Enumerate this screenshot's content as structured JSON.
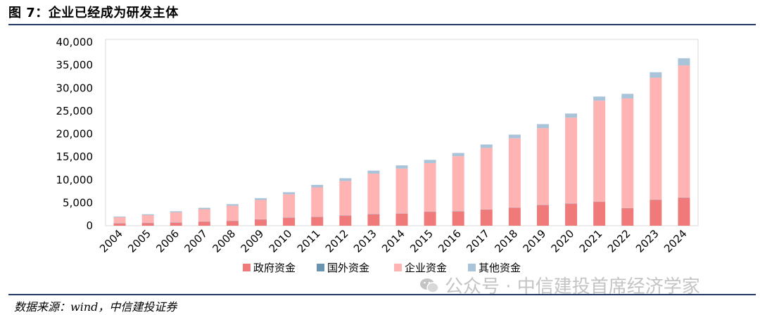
{
  "title": "图 7：企业已经成为研发主体",
  "source": "数据来源：wind，中信建投证券",
  "watermark": "公众号 · 中信建投首席经济学家",
  "chart_data": {
    "type": "bar",
    "stacked": true,
    "categories": [
      "2004",
      "2005",
      "2006",
      "2007",
      "2008",
      "2009",
      "2010",
      "2011",
      "2012",
      "2013",
      "2014",
      "2015",
      "2016",
      "2017",
      "2018",
      "2019",
      "2020",
      "2021",
      "2022",
      "2023",
      "2024"
    ],
    "ylim": [
      0,
      40000
    ],
    "yticks": [
      0,
      5000,
      10000,
      15000,
      20000,
      25000,
      30000,
      35000,
      40000
    ],
    "ytick_labels": [
      "0",
      "5,000",
      "10,000",
      "15,000",
      "20,000",
      "25,000",
      "30,000",
      "35,000",
      "40,000"
    ],
    "legend_position": "bottom",
    "grid": false,
    "series": [
      {
        "name": "政府资金",
        "color": "#f07a7a",
        "values": [
          500,
          550,
          650,
          850,
          1000,
          1350,
          1700,
          1900,
          2200,
          2500,
          2600,
          3000,
          3100,
          3500,
          3900,
          4500,
          4800,
          5200,
          3800,
          5600,
          6100
        ]
      },
      {
        "name": "国外资金",
        "color": "#6a93b0",
        "values": [
          50,
          50,
          50,
          50,
          50,
          50,
          50,
          50,
          50,
          50,
          50,
          50,
          50,
          50,
          50,
          50,
          50,
          50,
          50,
          50,
          50
        ]
      },
      {
        "name": "企业资金",
        "color": "#ffb3b3",
        "values": [
          1300,
          1700,
          2200,
          2700,
          3300,
          4200,
          5100,
          6400,
          7500,
          8800,
          9800,
          10600,
          12000,
          13400,
          15100,
          16700,
          18700,
          22000,
          23900,
          26600,
          28800
        ]
      },
      {
        "name": "其他资金",
        "color": "#a9c4d8",
        "values": [
          150,
          200,
          250,
          300,
          350,
          400,
          450,
          550,
          600,
          650,
          700,
          700,
          700,
          750,
          800,
          900,
          900,
          900,
          1000,
          1200,
          1550
        ]
      }
    ]
  }
}
